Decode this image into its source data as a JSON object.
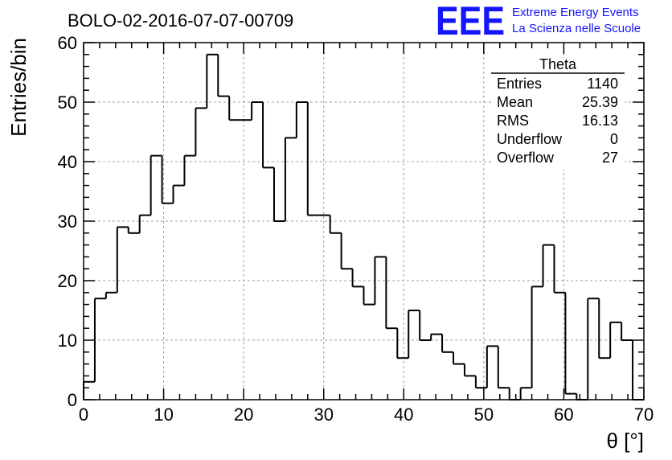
{
  "header": {
    "title": "BOLO-02-2016-07-07-00709",
    "logo_text": "EEE",
    "logo_line1": "Extreme Energy Events",
    "logo_line2": "La Scienza nelle Scuole",
    "logo_color": "#1414ff"
  },
  "stats": {
    "name": "Theta",
    "rows": [
      {
        "label": "Entries",
        "value": "1140"
      },
      {
        "label": "Mean",
        "value": "25.39"
      },
      {
        "label": "RMS",
        "value": "16.13"
      },
      {
        "label": "Underflow",
        "value": "0"
      },
      {
        "label": "Overflow",
        "value": "27"
      }
    ]
  },
  "chart_data": {
    "type": "histogram",
    "xlabel": "θ [°]",
    "ylabel": "Entries/bin",
    "xlim": [
      0,
      70
    ],
    "ylim": [
      0,
      60
    ],
    "bin_width": 1.4,
    "xticks": [
      0,
      10,
      20,
      30,
      40,
      50,
      60,
      70
    ],
    "yticks": [
      0,
      10,
      20,
      30,
      40,
      50,
      60
    ],
    "grid": true,
    "line_color": "#000000",
    "values": [
      3,
      17,
      18,
      29,
      28,
      31,
      41,
      33,
      36,
      41,
      49,
      58,
      51,
      47,
      47,
      50,
      39,
      30,
      44,
      50,
      31,
      31,
      28,
      22,
      19,
      16,
      24,
      12,
      7,
      15,
      10,
      11,
      8,
      6,
      4,
      2,
      9,
      2,
      0,
      2,
      19,
      26,
      18,
      1,
      0,
      17,
      7,
      13,
      10,
      0
    ]
  }
}
